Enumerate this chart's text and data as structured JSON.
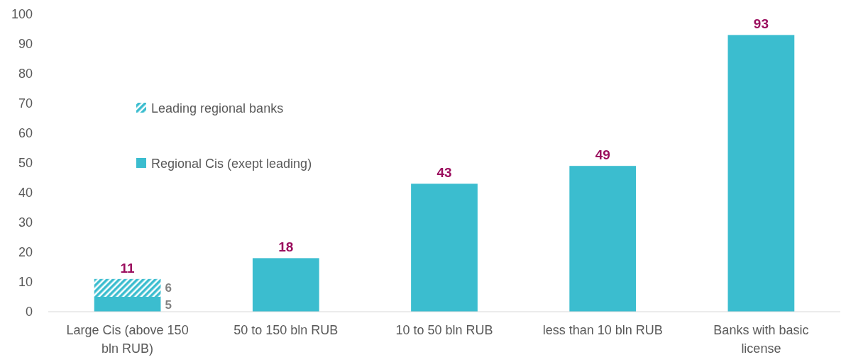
{
  "chart_data": {
    "type": "bar",
    "stacked": true,
    "categories": [
      "Large Cis (above 150 bln RUB)",
      "50 to 150 bln RUB",
      "10 to 50 bln RUB",
      "less than 10 bln RUB",
      "Banks with basic license"
    ],
    "series": [
      {
        "name": "Regional Cis (exept leading)",
        "color": "#3bbdcf",
        "values": [
          5,
          18,
          43,
          49,
          93
        ],
        "value_labels": [
          "5",
          null,
          null,
          null,
          null
        ]
      },
      {
        "name": "Leading regional banks",
        "color": "#3bbdcf",
        "values": [
          6,
          null,
          null,
          null,
          null
        ],
        "value_labels": [
          "6",
          null,
          null,
          null,
          null
        ]
      }
    ],
    "totals": [
      "11",
      "18",
      "43",
      "49",
      "93"
    ],
    "ylim": [
      0,
      100
    ],
    "yticks": [
      0,
      10,
      20,
      30,
      40,
      50,
      60,
      70,
      80,
      90,
      100
    ],
    "legend": "top left"
  }
}
